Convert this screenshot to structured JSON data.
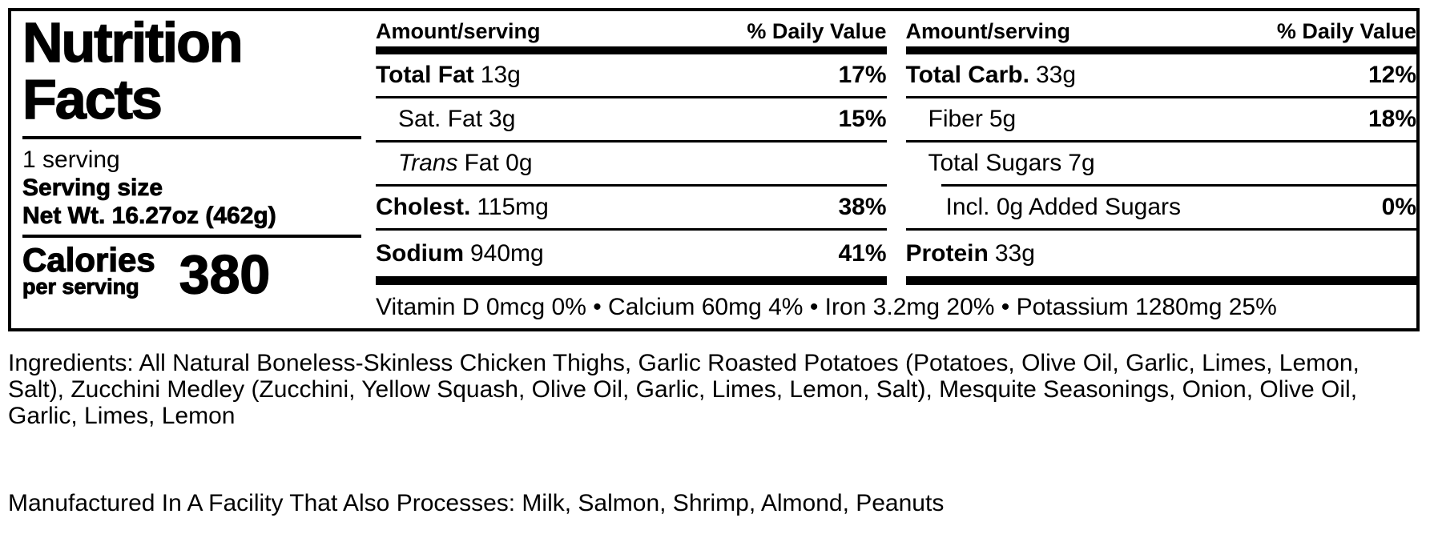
{
  "nutrition_label": {
    "title_line1": "Nutrition",
    "title_line2": "Facts",
    "serving_count": "1 serving",
    "serving_size_label": "Serving size",
    "net_weight": "Net Wt. 16.27oz (462g)",
    "calories": {
      "label": "Calories",
      "sublabel": "per serving",
      "value": "380"
    },
    "columns": {
      "amount_header": "Amount/serving",
      "dv_header": "% Daily Value"
    },
    "left_column_rows": [
      {
        "name": "Total Fat",
        "amount": "13g",
        "dv": "17%"
      },
      {
        "name": "Sat. Fat",
        "amount": "3g",
        "dv": "15%"
      },
      {
        "name": "Trans",
        "amount": "Fat 0g",
        "dv": ""
      },
      {
        "name": "Cholest.",
        "amount": "115mg",
        "dv": "38%"
      },
      {
        "name": "Sodium",
        "amount": "940mg",
        "dv": "41%"
      }
    ],
    "right_column_rows": [
      {
        "name": "Total Carb.",
        "amount": "33g",
        "dv": "12%"
      },
      {
        "name": "Fiber",
        "amount": "5g",
        "dv": "18%"
      },
      {
        "name": "Total Sugars",
        "amount": "7g",
        "dv": ""
      },
      {
        "name": "Incl. 0g Added Sugars",
        "amount": "",
        "dv": "0%"
      },
      {
        "name": "Protein",
        "amount": "33g",
        "dv": ""
      }
    ],
    "micronutrients": "Vitamin D 0mcg 0% • Calcium 60mg 4% • Iron 3.2mg 20% • Potassium 1280mg 25%",
    "colors": {
      "ink": "#000000",
      "background": "#ffffff"
    }
  },
  "ingredients": "Ingredients: All Natural Boneless-Skinless Chicken Thighs, Garlic Roasted Potatoes (Potatoes, Olive Oil, Garlic, Limes, Lemon, Salt), Zucchini Medley (Zucchini, Yellow Squash, Olive Oil, Garlic, Limes, Lemon, Salt), Mesquite Seasonings, Onion, Olive Oil, Garlic, Limes, Lemon",
  "allergen_statement": "Manufactured In A Facility That Also Processes: Milk, Salmon, Shrimp, Almond, Peanuts"
}
